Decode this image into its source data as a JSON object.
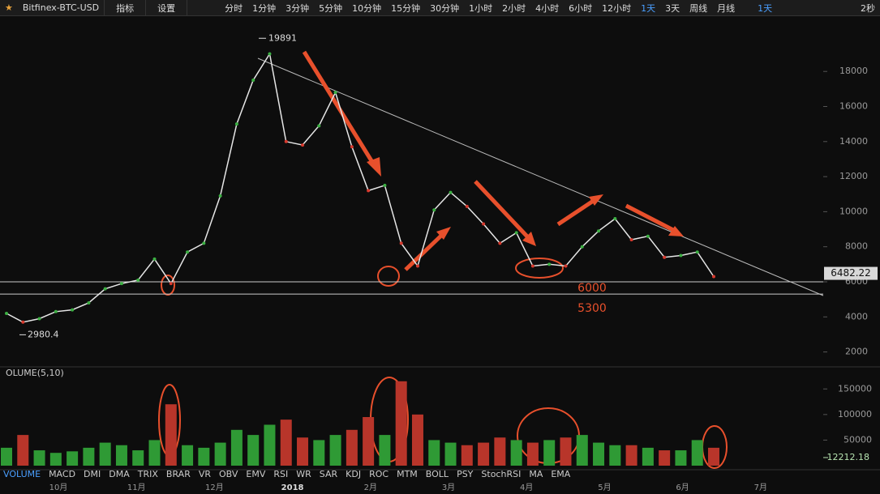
{
  "toolbar": {
    "symbol": "Bitfinex-BTC-USD",
    "menus": [
      "指标",
      "设置"
    ],
    "intervals": [
      "分时",
      "1分钟",
      "3分钟",
      "5分钟",
      "10分钟",
      "15分钟",
      "30分钟",
      "1小时",
      "2小时",
      "4小时",
      "6小时",
      "12小时",
      "1天",
      "3天",
      "周线",
      "月线"
    ],
    "active_interval": "1天",
    "refresh": "2秒"
  },
  "chart_data": {
    "type": "line",
    "x_labels": [
      "10月",
      "11月",
      "12月",
      "2018",
      "2月",
      "3月",
      "4月",
      "5月",
      "6月",
      "7月"
    ],
    "values": [
      4200,
      3700,
      3900,
      4300,
      4400,
      4800,
      5600,
      5900,
      6100,
      7300,
      5900,
      7700,
      8200,
      10900,
      15000,
      17500,
      19000,
      14000,
      13800,
      14900,
      16800,
      13700,
      11200,
      11500,
      8200,
      6900,
      10100,
      11100,
      10300,
      9300,
      8200,
      8800,
      6900,
      7000,
      6900,
      8000,
      8900,
      9600,
      8400,
      8600,
      7400,
      7500,
      7700,
      6300
    ],
    "ylim": [
      1150,
      21150
    ],
    "yticks": [
      2000,
      4000,
      6000,
      8000,
      10000,
      12000,
      14000,
      16000,
      18000
    ],
    "high_label": 19891,
    "low_label": 2980.4,
    "last_price": 6482.22,
    "levels": [
      6000,
      5300
    ],
    "volume": {
      "label": "OLUME(5,10)",
      "values": [
        35000,
        60000,
        30000,
        25000,
        28000,
        35000,
        45000,
        40000,
        30000,
        50000,
        120000,
        40000,
        35000,
        45000,
        70000,
        60000,
        80000,
        90000,
        55000,
        50000,
        60000,
        70000,
        95000,
        60000,
        165000,
        100000,
        50000,
        45000,
        40000,
        45000,
        55000,
        50000,
        45000,
        50000,
        55000,
        60000,
        45000,
        40000,
        40000,
        35000,
        30000,
        30000,
        50000,
        35000
      ],
      "ylim": [
        0,
        190000
      ],
      "yticks": [
        50000,
        100000,
        150000
      ],
      "last": 12212.18
    },
    "indicators": [
      "VOLUME",
      "MACD",
      "DMI",
      "DMA",
      "TRIX",
      "BRAR",
      "VR",
      "OBV",
      "EMV",
      "RSI",
      "WR",
      "SAR",
      "KDJ",
      "ROC",
      "MTM",
      "BOLL",
      "PSY",
      "StochRSI",
      "MA",
      "EMA"
    ]
  }
}
